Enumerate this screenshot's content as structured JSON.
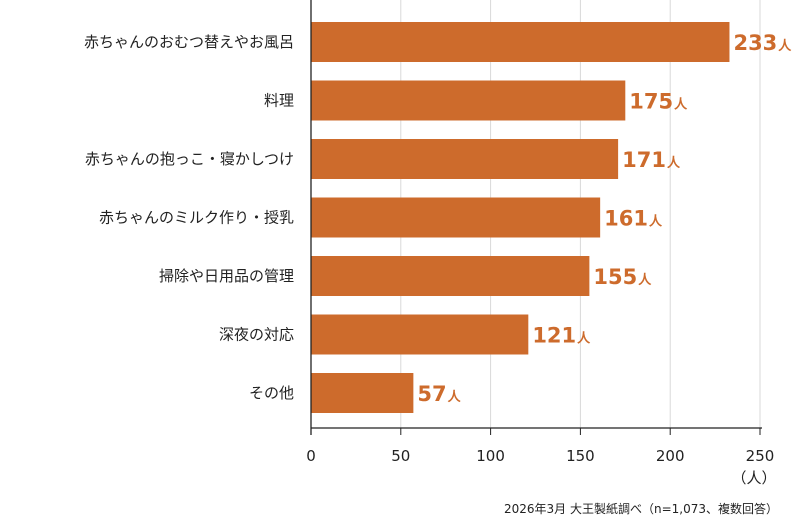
{
  "chart_data": {
    "type": "bar",
    "orientation": "horizontal",
    "categories": [
      "赤ちゃんのおむつ替えやお風呂",
      "料理",
      "赤ちゃんの抱っこ・寝かしつけ",
      "赤ちゃんのミルク作り・授乳",
      "掃除や日用品の管理",
      "深夜の対応",
      "その他"
    ],
    "values": [
      233,
      175,
      171,
      161,
      155,
      121,
      57
    ],
    "value_unit": "人",
    "xlim": [
      0,
      250
    ],
    "xticks": [
      0,
      50,
      100,
      150,
      200,
      250
    ],
    "x_unit_label": "（人）",
    "grid": true,
    "legend": "none"
  },
  "colors": {
    "bar": "#cd6b2c",
    "value_label": "#cd6b2c",
    "grid": "#d9d9d9",
    "axis": "#222222"
  },
  "source_note": "2026年3月 大王製紙調べ（n=1,073、複数回答）"
}
